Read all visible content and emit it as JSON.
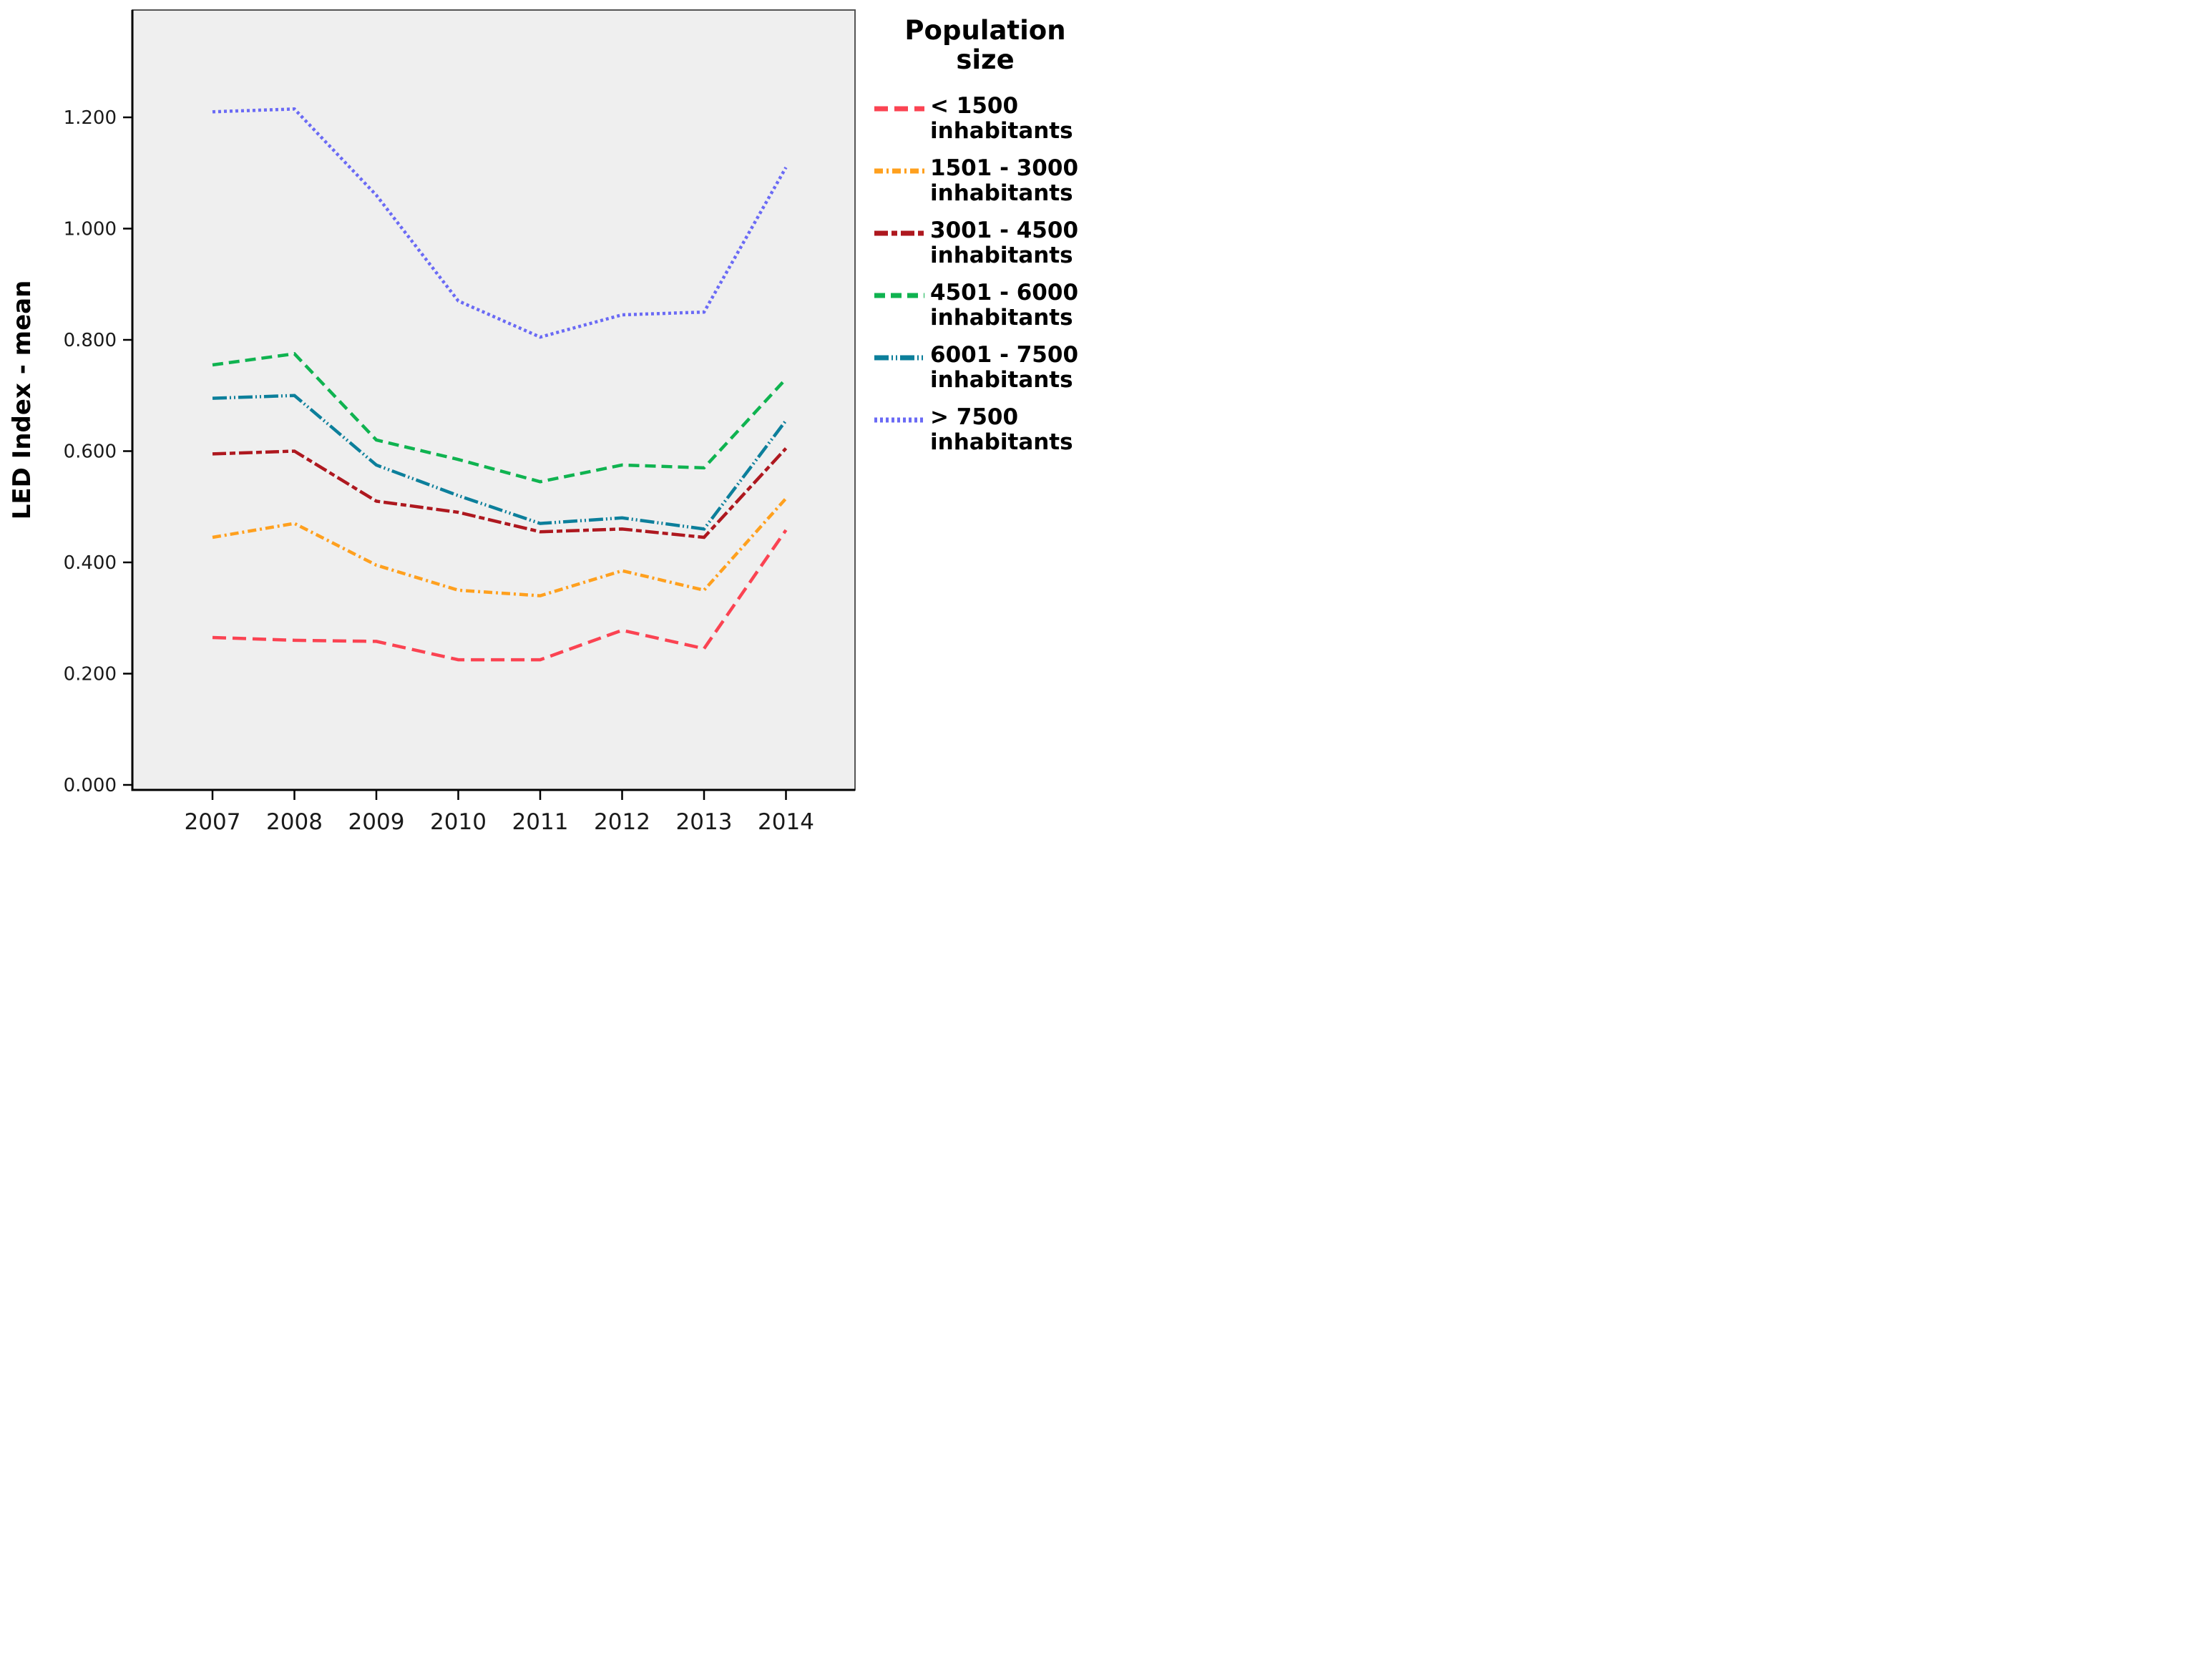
{
  "chart_data": {
    "type": "line",
    "title": "",
    "xlabel": "",
    "ylabel": "LED Index - mean",
    "x": [
      2007,
      2008,
      2009,
      2010,
      2011,
      2012,
      2013,
      2014
    ],
    "y_ticks": [
      "0.000",
      "0.200",
      "0.400",
      "0.600",
      "0.800",
      "1.000",
      "1.200"
    ],
    "y_tick_values": [
      0,
      0.2,
      0.4,
      0.6,
      0.8,
      1.0,
      1.2
    ],
    "ylim": [
      0,
      1.39
    ],
    "grid": false,
    "plot_bg": "#EFEFEF",
    "legend_position": "right",
    "legend_title": "Population size",
    "series": [
      {
        "name": "< 1500 inhabitants",
        "color": "#FB4352",
        "dash": "19,9",
        "values": [
          0.265,
          0.26,
          0.258,
          0.225,
          0.225,
          0.278,
          0.245,
          0.458
        ]
      },
      {
        "name": "1501 - 3000 inhabitants",
        "color": "#FFA01E",
        "dash": "12,5,3,5",
        "values": [
          0.445,
          0.47,
          0.395,
          0.35,
          0.34,
          0.385,
          0.35,
          0.515
        ]
      },
      {
        "name": "3001 - 4500 inhabitants",
        "color": "#AE181F",
        "dash": "19,5,8,5",
        "values": [
          0.595,
          0.6,
          0.51,
          0.49,
          0.455,
          0.46,
          0.445,
          0.605
        ]
      },
      {
        "name": "4501 - 6000 inhabitants",
        "color": "#0FB350",
        "dash": "15,8",
        "values": [
          0.755,
          0.775,
          0.62,
          0.585,
          0.545,
          0.575,
          0.57,
          0.73
        ]
      },
      {
        "name": "6001 - 7500 inhabitants",
        "color": "#0C7F9B",
        "dash": "20,4,2,4,2,4",
        "values": [
          0.695,
          0.7,
          0.575,
          0.52,
          0.47,
          0.48,
          0.46,
          0.655
        ]
      },
      {
        "name": "> 7500 inhabitants",
        "color": "#6A6AF5",
        "dash": "4,4",
        "values": [
          1.21,
          1.215,
          1.06,
          0.87,
          0.805,
          0.845,
          0.85,
          1.11
        ]
      }
    ]
  },
  "legend": {
    "title": "Population size"
  }
}
